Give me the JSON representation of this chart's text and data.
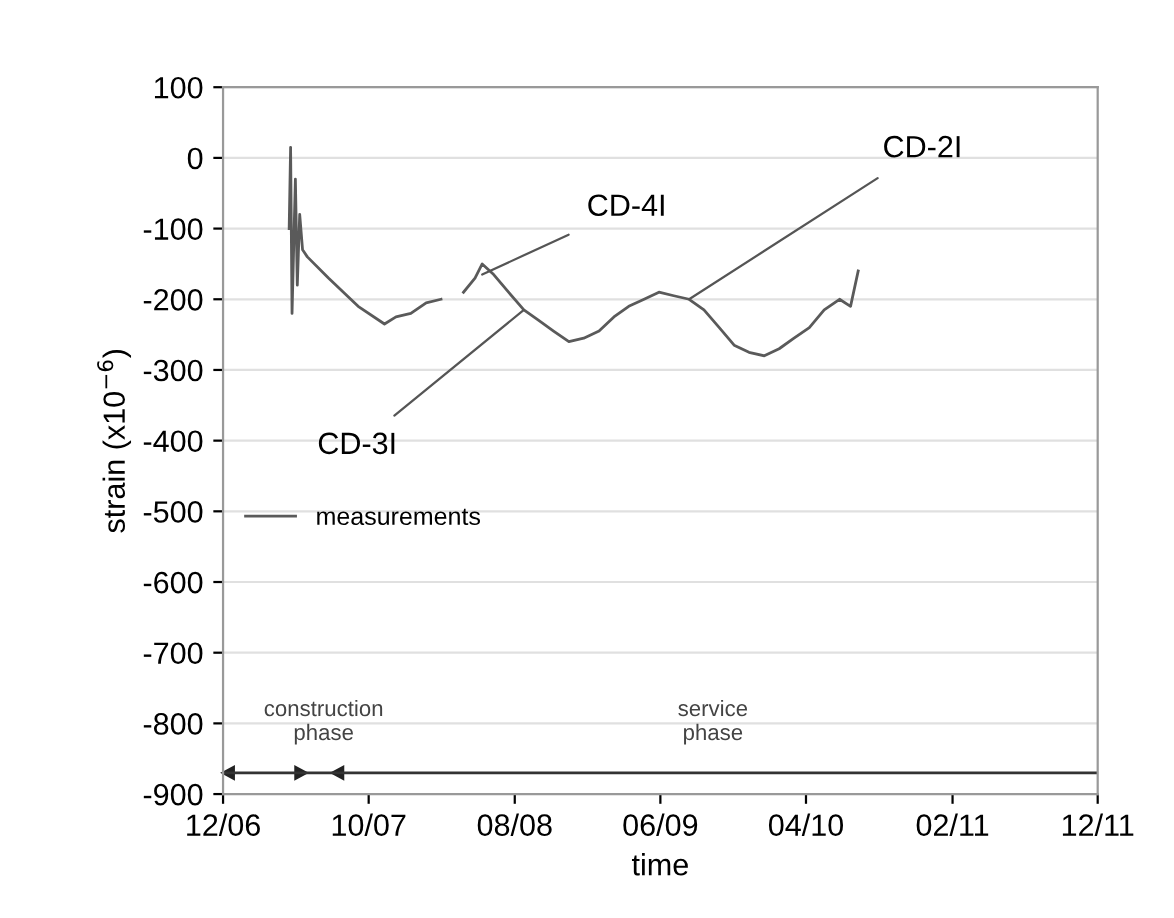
{
  "chart_data": {
    "type": "line",
    "xlabel": "time",
    "ylabel": "strain (x10$^{−6}$)",
    "xlim": [
      "2006-12-01",
      "2011-12-01"
    ],
    "xticks": [
      {
        "value": "2006-12-01",
        "label": "12/06"
      },
      {
        "value": "2007-10-01",
        "label": "10/07"
      },
      {
        "value": "2008-08-01",
        "label": "08/08"
      },
      {
        "value": "2009-06-01",
        "label": "06/09"
      },
      {
        "value": "2010-04-01",
        "label": "04/10"
      },
      {
        "value": "2011-02-01",
        "label": "02/11"
      },
      {
        "value": "2011-12-01",
        "label": "12/11"
      }
    ],
    "ylim": [
      -900,
      100
    ],
    "yticks": [
      -900,
      -800,
      -700,
      -600,
      -500,
      -400,
      -300,
      -200,
      -100,
      0,
      100
    ],
    "grid": "y",
    "legend": "left",
    "x": [
      "2007-04-18",
      "2007-04-21",
      "2007-04-24",
      "2007-05-01",
      "2007-05-05",
      "2007-05-10",
      "2007-05-16",
      "2007-05-26",
      "2007-07-09",
      "2007-09-09",
      "2007-11-03",
      "2007-11-27",
      "2007-12-28",
      "2008-01-29",
      "2008-02-29",
      "2008-03-24",
      "2008-04-16",
      "2008-05-10",
      "2008-05-25",
      "2008-06-18",
      "2008-07-19",
      "2008-08-20",
      "2008-09-20",
      "2008-10-21",
      "2008-11-22",
      "2008-12-23",
      "2009-01-24",
      "2009-02-24",
      "2009-03-27",
      "2009-04-28",
      "2009-05-29",
      "2009-06-29",
      "2009-07-31",
      "2009-08-31",
      "2009-10-02",
      "2009-11-02",
      "2009-12-03",
      "2010-01-04",
      "2010-02-04",
      "2010-03-07",
      "2010-04-08",
      "2010-05-09",
      "2010-06-10",
      "2010-07-03",
      "2010-07-19"
    ],
    "series": [
      {
        "name": "measurements",
        "color": "#5a5a5a",
        "values": [
          -100,
          15,
          -220,
          -30,
          -180,
          -80,
          -130,
          -140,
          -170,
          -210,
          -235,
          -225,
          -220,
          -205,
          -200,
          null,
          -190,
          -170,
          -150,
          -165,
          -190,
          -215,
          -230,
          -245,
          -260,
          -255,
          -245,
          -225,
          -210,
          -200,
          -190,
          -195,
          -200,
          -215,
          -240,
          -265,
          -275,
          -280,
          -270,
          -255,
          -240,
          -215,
          -200,
          -210,
          -160
        ]
      }
    ],
    "annotations": [
      {
        "text": "CD-4I",
        "x": "2008-05-25",
        "y": -165
      },
      {
        "text": "CD-2I",
        "x": "2009-07-31",
        "y": -200
      },
      {
        "text": "CD-3I",
        "x": "2008-08-20",
        "y": -215
      },
      "construction\nphase",
      "service\nphase"
    ],
    "ref_lines": [
      {
        "axis": "y",
        "value": -870
      }
    ]
  }
}
